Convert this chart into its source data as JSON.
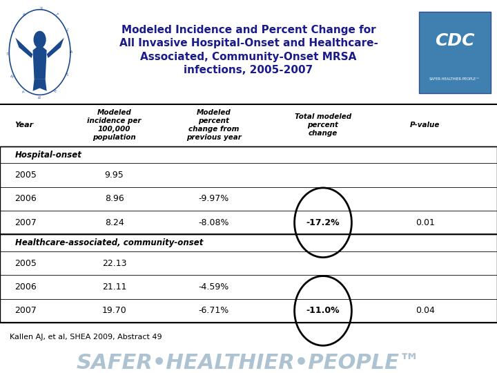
{
  "title_line1": "Modeled Incidence and Percent Change for",
  "title_line2": "All Invasive Hospital-Onset and Healthcare-",
  "title_line3": "Associated, Community-Onset MRSA",
  "title_line4": "infections, 2005-2007",
  "section1_label": "Hospital-onset",
  "section1_rows": [
    [
      "2005",
      "9.95",
      "",
      "",
      ""
    ],
    [
      "2006",
      "8.96",
      "-9.97%",
      "",
      ""
    ],
    [
      "2007",
      "8.24",
      "-8.08%",
      "-17.2%",
      "0.01"
    ]
  ],
  "section2_label": "Healthcare-associated, community-onset",
  "section2_rows": [
    [
      "2005",
      "22.13",
      "",
      "",
      ""
    ],
    [
      "2006",
      "21.11",
      "-4.59%",
      "",
      ""
    ],
    [
      "2007",
      "19.70",
      "-6.71%",
      "-11.0%",
      "0.04"
    ]
  ],
  "footnote": "Kallen AJ, et al, SHEA 2009, Abstract 49",
  "bg_color": "#ffffff",
  "title_color": "#1a1a8c",
  "footer_bg": "#b8cfe0",
  "circle_color": "#000000",
  "cdc_blue": "#2060a0",
  "hhs_blue": "#1a4a8c"
}
